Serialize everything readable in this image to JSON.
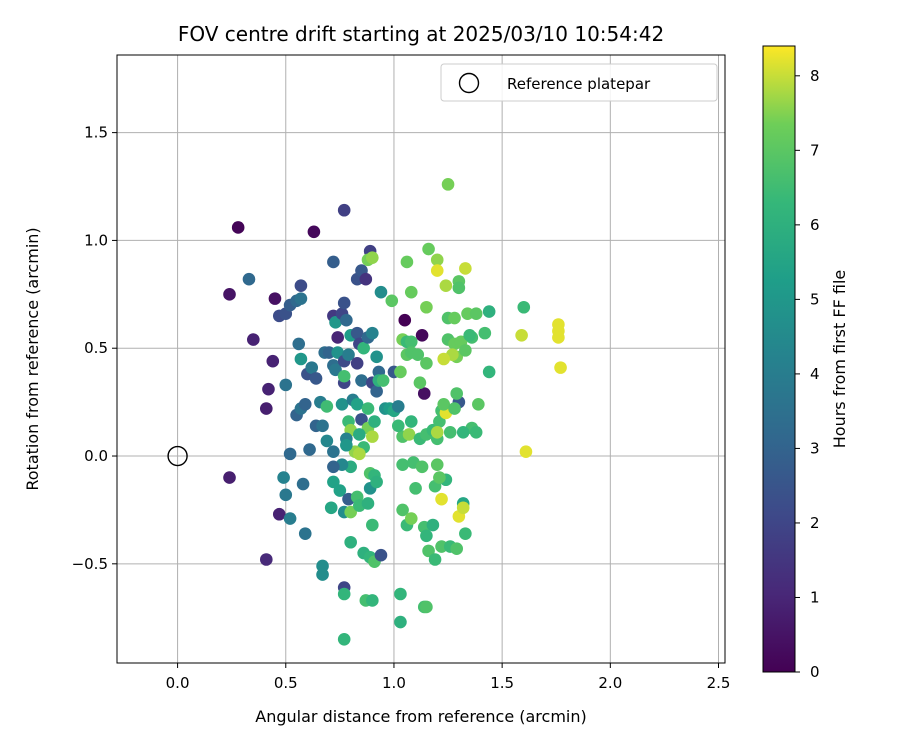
{
  "chart_data": {
    "type": "scatter",
    "title": "FOV centre drift starting at 2025/03/10 10:54:42",
    "xlabel": "Angular distance from reference (arcmin)",
    "ylabel": "Rotation from reference (arcmin)",
    "xlim": [
      -0.28,
      2.53
    ],
    "ylim": [
      -0.96,
      1.86
    ],
    "xticks": [
      0.0,
      0.5,
      1.0,
      1.5,
      2.0,
      2.5
    ],
    "xtick_labels": [
      "0.0",
      "0.5",
      "1.0",
      "1.5",
      "2.0",
      "2.5"
    ],
    "yticks": [
      -0.5,
      0.0,
      0.5,
      1.0,
      1.5
    ],
    "ytick_labels": [
      "−0.5",
      "0.0",
      "0.5",
      "1.0",
      "1.5"
    ],
    "grid": true,
    "legend": {
      "position": "top-right",
      "entries": [
        "Reference platepar"
      ]
    },
    "reference": {
      "x": 0.0,
      "y": 0.0
    },
    "colorbar": {
      "label": "Hours from first FF file",
      "colormap": "viridis",
      "range": [
        0,
        8.4
      ],
      "ticks": [
        0,
        1,
        2,
        3,
        4,
        5,
        6,
        7,
        8
      ],
      "tick_labels": [
        "0",
        "1",
        "2",
        "3",
        "4",
        "5",
        "6",
        "7",
        "8"
      ]
    },
    "points": [
      [
        0.28,
        1.06,
        0.1
      ],
      [
        0.24,
        0.75,
        0.5
      ],
      [
        0.63,
        1.04,
        0.2
      ],
      [
        0.77,
        1.14,
        1.8
      ],
      [
        0.33,
        0.82,
        3.2
      ],
      [
        0.35,
        0.54,
        0.9
      ],
      [
        0.45,
        0.73,
        0.4
      ],
      [
        0.42,
        0.31,
        0.9
      ],
      [
        0.44,
        0.44,
        0.9
      ],
      [
        0.41,
        0.22,
        0.8
      ],
      [
        0.24,
        -0.1,
        0.8
      ],
      [
        0.47,
        -0.27,
        0.9
      ],
      [
        0.41,
        -0.48,
        1.1
      ],
      [
        0.47,
        0.65,
        2.2
      ],
      [
        0.5,
        0.66,
        2.4
      ],
      [
        0.52,
        0.7,
        2.8
      ],
      [
        0.55,
        0.72,
        3.2
      ],
      [
        0.57,
        0.73,
        3.6
      ],
      [
        0.57,
        0.79,
        2.2
      ],
      [
        0.56,
        0.52,
        3.4
      ],
      [
        0.5,
        0.33,
        3.6
      ],
      [
        0.52,
        0.01,
        3.2
      ],
      [
        0.55,
        0.19,
        3.0
      ],
      [
        0.57,
        0.22,
        3.6
      ],
      [
        0.59,
        0.24,
        3.0
      ],
      [
        0.57,
        0.45,
        5.0
      ],
      [
        0.6,
        0.38,
        2.4
      ],
      [
        0.62,
        0.41,
        3.8
      ],
      [
        0.64,
        0.36,
        2.6
      ],
      [
        0.64,
        0.14,
        3.0
      ],
      [
        0.61,
        0.03,
        3.2
      ],
      [
        0.67,
        0.14,
        3.6
      ],
      [
        0.66,
        0.25,
        4.0
      ],
      [
        0.69,
        0.23,
        6.5
      ],
      [
        0.68,
        0.48,
        3.4
      ],
      [
        0.7,
        0.48,
        3.0
      ],
      [
        0.72,
        0.42,
        3.4
      ],
      [
        0.73,
        0.4,
        3.8
      ],
      [
        0.74,
        0.55,
        1.0
      ],
      [
        0.72,
        0.65,
        1.6
      ],
      [
        0.73,
        0.62,
        5.0
      ],
      [
        0.76,
        0.66,
        2.0
      ],
      [
        0.77,
        0.71,
        2.4
      ],
      [
        0.78,
        0.63,
        3.2
      ],
      [
        0.72,
        0.9,
        2.8
      ],
      [
        0.74,
        0.48,
        4.8
      ],
      [
        0.77,
        0.44,
        2.2
      ],
      [
        0.77,
        0.34,
        2.0
      ],
      [
        0.77,
        0.37,
        6.6
      ],
      [
        0.79,
        0.47,
        4.0
      ],
      [
        0.8,
        0.56,
        5.2
      ],
      [
        0.83,
        0.57,
        2.6
      ],
      [
        0.83,
        0.43,
        1.8
      ],
      [
        0.84,
        0.52,
        2.0
      ],
      [
        0.86,
        0.5,
        6.2
      ],
      [
        0.88,
        0.55,
        3.2
      ],
      [
        0.9,
        0.57,
        4.2
      ],
      [
        0.92,
        0.46,
        4.8
      ],
      [
        0.83,
        0.82,
        2.4
      ],
      [
        0.85,
        0.86,
        2.6
      ],
      [
        0.87,
        0.82,
        1.4
      ],
      [
        0.89,
        0.95,
        1.8
      ],
      [
        0.88,
        0.91,
        7.4
      ],
      [
        0.9,
        0.92,
        7.6
      ],
      [
        0.94,
        0.76,
        4.6
      ],
      [
        0.85,
        0.35,
        3.4
      ],
      [
        0.9,
        0.34,
        2.0
      ],
      [
        0.92,
        0.3,
        3.0
      ],
      [
        0.93,
        0.39,
        3.2
      ],
      [
        0.93,
        0.35,
        6.0
      ],
      [
        0.95,
        0.35,
        6.6
      ],
      [
        0.96,
        0.22,
        4.8
      ],
      [
        0.98,
        0.22,
        5.2
      ],
      [
        1.0,
        0.21,
        5.6
      ],
      [
        1.02,
        0.23,
        4.0
      ],
      [
        1.0,
        0.39,
        2.6
      ],
      [
        0.76,
        0.24,
        4.8
      ],
      [
        0.79,
        0.16,
        6.4
      ],
      [
        0.81,
        0.26,
        4.0
      ],
      [
        0.83,
        0.24,
        5.4
      ],
      [
        0.85,
        0.17,
        2.4
      ],
      [
        0.88,
        0.22,
        6.4
      ],
      [
        0.88,
        0.13,
        7.4
      ],
      [
        0.8,
        0.12,
        7.6
      ],
      [
        0.78,
        0.08,
        4.2
      ],
      [
        0.84,
        0.1,
        5.8
      ],
      [
        0.9,
        0.09,
        7.8
      ],
      [
        0.91,
        0.16,
        6.0
      ],
      [
        0.86,
        0.04,
        6.4
      ],
      [
        0.82,
        0.02,
        7.6
      ],
      [
        0.84,
        0.01,
        7.8
      ],
      [
        0.78,
        0.05,
        5.0
      ],
      [
        0.69,
        0.07,
        4.4
      ],
      [
        0.72,
        0.02,
        3.6
      ],
      [
        0.8,
        -0.05,
        5.8
      ],
      [
        0.76,
        -0.04,
        4.4
      ],
      [
        0.72,
        -0.05,
        3.0
      ],
      [
        0.75,
        -0.16,
        5.4
      ],
      [
        0.72,
        -0.12,
        5.4
      ],
      [
        0.71,
        -0.24,
        5.6
      ],
      [
        0.77,
        -0.26,
        4.6
      ],
      [
        0.79,
        -0.2,
        2.8
      ],
      [
        0.8,
        -0.26,
        7.4
      ],
      [
        0.83,
        -0.19,
        6.6
      ],
      [
        0.84,
        -0.23,
        6.4
      ],
      [
        0.88,
        -0.22,
        6.0
      ],
      [
        0.89,
        -0.08,
        6.8
      ],
      [
        0.91,
        -0.09,
        6.2
      ],
      [
        0.89,
        -0.15,
        4.8
      ],
      [
        0.92,
        -0.12,
        6.0
      ],
      [
        0.9,
        -0.32,
        6.4
      ],
      [
        0.8,
        -0.4,
        6.0
      ],
      [
        0.86,
        -0.45,
        6.0
      ],
      [
        0.89,
        -0.47,
        6.2
      ],
      [
        0.91,
        -0.49,
        6.8
      ],
      [
        0.94,
        -0.46,
        2.4
      ],
      [
        0.77,
        -0.61,
        2.0
      ],
      [
        0.77,
        -0.64,
        6.2
      ],
      [
        0.67,
        -0.51,
        4.6
      ],
      [
        0.67,
        -0.55,
        4.6
      ],
      [
        0.77,
        -0.85,
        6.2
      ],
      [
        0.87,
        -0.67,
        6.6
      ],
      [
        0.9,
        -0.67,
        6.2
      ],
      [
        1.03,
        -0.64,
        6.2
      ],
      [
        1.03,
        -0.77,
        6.0
      ],
      [
        0.49,
        -0.1,
        4.2
      ],
      [
        0.5,
        -0.18,
        3.8
      ],
      [
        0.52,
        -0.29,
        4.0
      ],
      [
        0.58,
        -0.13,
        3.4
      ],
      [
        0.59,
        -0.36,
        3.6
      ],
      [
        0.99,
        0.72,
        7.0
      ],
      [
        1.04,
        0.54,
        7.4
      ],
      [
        1.06,
        0.53,
        6.4
      ],
      [
        1.08,
        0.53,
        6.6
      ],
      [
        1.05,
        0.63,
        0.0
      ],
      [
        1.13,
        0.56,
        0.2
      ],
      [
        1.14,
        0.29,
        0.4
      ],
      [
        1.03,
        0.39,
        7.2
      ],
      [
        1.06,
        0.47,
        7.0
      ],
      [
        1.08,
        0.48,
        6.8
      ],
      [
        1.11,
        0.47,
        6.8
      ],
      [
        1.12,
        0.34,
        7.0
      ],
      [
        1.15,
        0.43,
        7.0
      ],
      [
        1.06,
        0.9,
        7.2
      ],
      [
        1.08,
        0.76,
        7.2
      ],
      [
        1.15,
        0.69,
        7.4
      ],
      [
        1.16,
        0.96,
        7.2
      ],
      [
        1.2,
        0.91,
        7.6
      ],
      [
        1.2,
        0.86,
        8.2
      ],
      [
        1.24,
        0.79,
        7.8
      ],
      [
        1.25,
        1.26,
        7.4
      ],
      [
        1.25,
        0.64,
        6.8
      ],
      [
        1.28,
        0.64,
        7.2
      ],
      [
        1.3,
        0.81,
        7.0
      ],
      [
        1.3,
        0.78,
        6.8
      ],
      [
        1.33,
        0.87,
        8.0
      ],
      [
        1.34,
        0.66,
        7.2
      ],
      [
        1.36,
        0.55,
        6.6
      ],
      [
        1.38,
        0.66,
        7.0
      ],
      [
        1.42,
        0.57,
        6.6
      ],
      [
        1.44,
        0.67,
        6.0
      ],
      [
        1.44,
        0.39,
        6.2
      ],
      [
        1.25,
        0.54,
        6.8
      ],
      [
        1.28,
        0.52,
        7.2
      ],
      [
        1.29,
        0.46,
        7.4
      ],
      [
        1.31,
        0.53,
        7.2
      ],
      [
        1.33,
        0.49,
        7.0
      ],
      [
        1.27,
        0.47,
        7.8
      ],
      [
        1.23,
        0.45,
        8.0
      ],
      [
        1.04,
        0.09,
        6.8
      ],
      [
        1.07,
        0.1,
        7.6
      ],
      [
        1.02,
        0.14,
        6.4
      ],
      [
        1.08,
        0.16,
        6.2
      ],
      [
        1.12,
        0.08,
        6.4
      ],
      [
        1.15,
        0.1,
        6.6
      ],
      [
        1.18,
        0.12,
        6.4
      ],
      [
        1.21,
        0.16,
        6.6
      ],
      [
        1.22,
        0.21,
        6.6
      ],
      [
        1.24,
        0.2,
        8.2
      ],
      [
        1.23,
        0.24,
        7.0
      ],
      [
        1.3,
        0.25,
        2.6
      ],
      [
        1.28,
        0.22,
        6.8
      ],
      [
        1.29,
        0.29,
        6.8
      ],
      [
        1.36,
        0.13,
        6.6
      ],
      [
        1.38,
        0.11,
        6.4
      ],
      [
        1.32,
        0.11,
        6.2
      ],
      [
        1.26,
        0.11,
        6.6
      ],
      [
        1.2,
        0.08,
        6.6
      ],
      [
        1.39,
        0.24,
        7.0
      ],
      [
        1.04,
        -0.04,
        6.6
      ],
      [
        1.09,
        -0.03,
        6.6
      ],
      [
        1.13,
        -0.05,
        6.8
      ],
      [
        1.2,
        -0.04,
        7.0
      ],
      [
        1.19,
        -0.14,
        6.6
      ],
      [
        1.24,
        -0.11,
        6.2
      ],
      [
        1.21,
        -0.1,
        7.0
      ],
      [
        1.22,
        -0.2,
        8.2
      ],
      [
        1.04,
        -0.25,
        6.8
      ],
      [
        1.06,
        -0.32,
        6.4
      ],
      [
        1.08,
        -0.29,
        7.4
      ],
      [
        1.14,
        -0.33,
        6.6
      ],
      [
        1.15,
        -0.37,
        6.2
      ],
      [
        1.18,
        -0.32,
        6.0
      ],
      [
        1.16,
        -0.44,
        6.8
      ],
      [
        1.22,
        -0.42,
        6.8
      ],
      [
        1.26,
        -0.42,
        6.4
      ],
      [
        1.29,
        -0.43,
        6.8
      ],
      [
        1.3,
        -0.28,
        8.2
      ],
      [
        1.32,
        -0.22,
        5.6
      ],
      [
        1.33,
        -0.36,
        6.4
      ],
      [
        1.32,
        -0.24,
        8.0
      ],
      [
        1.19,
        -0.48,
        6.4
      ],
      [
        1.14,
        -0.7,
        6.6
      ],
      [
        1.15,
        -0.7,
        6.8
      ],
      [
        1.59,
        0.56,
        8.0
      ],
      [
        1.6,
        0.69,
        6.4
      ],
      [
        1.61,
        0.02,
        8.2
      ],
      [
        1.76,
        0.61,
        8.2
      ],
      [
        1.76,
        0.58,
        8.2
      ],
      [
        1.76,
        0.55,
        8.2
      ],
      [
        1.77,
        0.41,
        8.2
      ],
      [
        1.2,
        0.11,
        7.8
      ],
      [
        1.35,
        0.56,
        6.4
      ],
      [
        1.1,
        -0.15,
        6.6
      ]
    ]
  }
}
